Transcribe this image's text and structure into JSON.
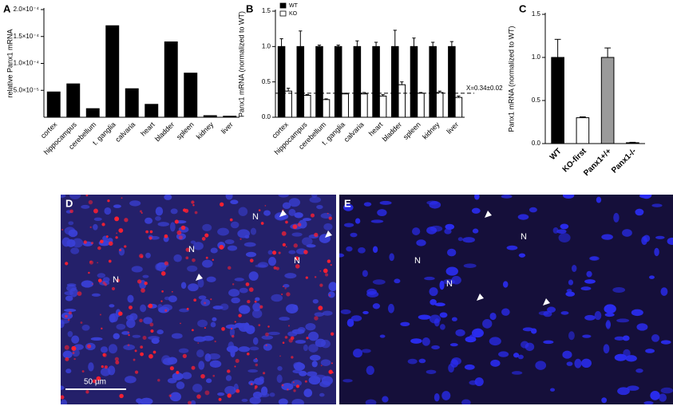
{
  "chart_data": [
    {
      "type": "bar",
      "panel_label": "A",
      "y_label": "relative Panx1 mRNA",
      "categories": [
        "cortex",
        "hippocampus",
        "cerebellum",
        "t. ganglia",
        "calvaria",
        "heart",
        "bladder",
        "spleen",
        "kidney",
        "liver"
      ],
      "values": [
        4.7e-05,
        6.2e-05,
        1.6e-05,
        0.00017,
        5.3e-05,
        2.4e-05,
        0.00014,
        8.2e-05,
        3e-06,
        2e-06
      ],
      "color": "#000000",
      "ylim": [
        0,
        0.0002
      ],
      "yticks": [
        {
          "value": 5e-05,
          "label": "5.0×10⁻⁵"
        },
        {
          "value": 0.0001,
          "label": "1.0×10⁻⁴"
        },
        {
          "value": 0.00015,
          "label": "1.5×10⁻⁴"
        },
        {
          "value": 0.0002,
          "label": "2.0×10⁻⁴"
        }
      ]
    },
    {
      "type": "bar",
      "panel_label": "B",
      "y_label": "Panx1 mRNA (normalized to WT)",
      "categories": [
        "cortex",
        "hippocampus",
        "cerebellum",
        "t. ganglia",
        "calvaria",
        "heart",
        "bladder",
        "spleen",
        "kidney",
        "liver"
      ],
      "series": [
        {
          "name": "WT",
          "color": "#000000",
          "values": [
            1.0,
            1.0,
            1.0,
            1.0,
            1.0,
            1.0,
            1.0,
            1.0,
            1.0,
            1.0
          ],
          "errors": [
            0.11,
            0.22,
            0.02,
            0.02,
            0.08,
            0.06,
            0.23,
            0.12,
            0.06,
            0.07
          ]
        },
        {
          "name": "KO",
          "color": "#ffffff",
          "values": [
            0.37,
            0.31,
            0.25,
            0.33,
            0.33,
            0.3,
            0.46,
            0.34,
            0.35,
            0.28
          ],
          "errors": [
            0.04,
            0.01,
            0.01,
            0.01,
            0.02,
            0.02,
            0.04,
            0.01,
            0.02,
            0.02
          ]
        }
      ],
      "reference_line": {
        "value": 0.34,
        "label": "X=0.34±0.02"
      },
      "ylim": [
        0,
        1.5
      ],
      "yticks": [
        {
          "value": 0,
          "label": "0.0"
        },
        {
          "value": 0.5,
          "label": "0.5"
        },
        {
          "value": 1,
          "label": "1.0"
        },
        {
          "value": 1.5,
          "label": "1.5"
        }
      ]
    },
    {
      "type": "bar",
      "panel_label": "C",
      "y_label": "Panx1 mRNA (normalized to WT)",
      "categories": [
        "WT",
        "KO-first",
        "Panx1+/+",
        "Panx1-/-"
      ],
      "values": [
        1.0,
        0.3,
        1.0,
        0.01
      ],
      "errors": [
        0.21,
        0.01,
        0.11,
        0.005
      ],
      "colors": [
        "#000000",
        "#ffffff",
        "#9a9a9a",
        "#000000"
      ],
      "ylim": [
        0,
        1.5
      ],
      "yticks": [
        {
          "value": 0,
          "label": "0.0"
        },
        {
          "value": 0.5,
          "label": "0.5"
        },
        {
          "value": 1,
          "label": "1.0"
        },
        {
          "value": 1.5,
          "label": "1.5"
        }
      ]
    }
  ],
  "images": [
    {
      "panel_label": "D",
      "annotations": [
        "N",
        "N",
        "N",
        "N"
      ],
      "scale_bar": "50 µm"
    },
    {
      "panel_label": "E",
      "annotations": [
        "N",
        "N",
        "N"
      ]
    }
  ]
}
